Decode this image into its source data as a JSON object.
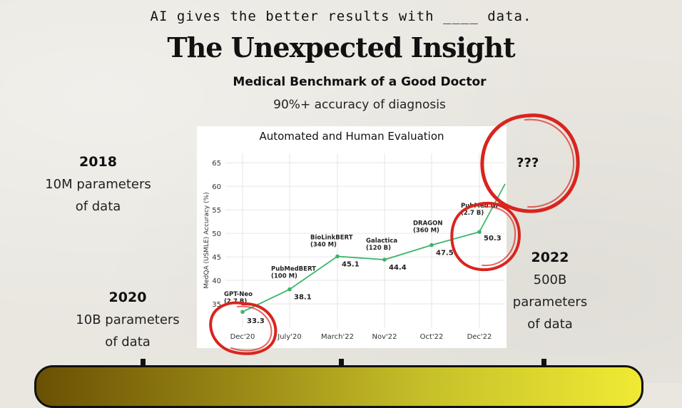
{
  "tagline": "AI gives the better results with ____ data.",
  "headline": "The Unexpected Insight",
  "benchmark": {
    "title": "Medical Benchmark of a Good Doctor",
    "detail": "90%+ accuracy of diagnosis"
  },
  "notes": {
    "y2018": {
      "year": "2018",
      "line1": "10M parameters",
      "line2": "of data"
    },
    "y2020": {
      "year": "2020",
      "line1": "10B parameters",
      "line2": "of data"
    },
    "y2022": {
      "year": "2022",
      "line1": "500B",
      "line2": "parameters",
      "line3": "of data"
    }
  },
  "unknown_label": "???",
  "colors": {
    "line": "#3cb56a",
    "circle": "#d9241e",
    "accent": "#f0ea34"
  },
  "chart_data": {
    "type": "line",
    "title": "Automated and Human Evaluation",
    "ylabel": "MedQA (USMLE) Accuracy (%)",
    "xlabel": "",
    "ylim": [
      30,
      67
    ],
    "yticks": [
      35,
      40,
      45,
      50,
      55,
      60,
      65
    ],
    "categories": [
      "Dec'20",
      "July'20",
      "March'22",
      "Nov'22",
      "Oct'22",
      "Dec'22"
    ],
    "points": [
      {
        "x": "Dec'20",
        "value": 33.3,
        "model": "GPT-Neo",
        "size": "(2.7 B)"
      },
      {
        "x": "July'20",
        "value": 38.1,
        "model": "PubMedBERT",
        "size": "(100 M)"
      },
      {
        "x": "March'22",
        "value": 45.1,
        "model": "BioLinkBERT",
        "size": "(340 M)"
      },
      {
        "x": "Nov'22",
        "value": 44.4,
        "model": "Galactica",
        "size": "(120 B)"
      },
      {
        "x": "Oct'22",
        "value": 47.5,
        "model": "DRAGON",
        "size": "(360 M)"
      },
      {
        "x": "Dec'22",
        "value": 50.3,
        "model": "PubMed GPT",
        "size": "(2.7 B)"
      }
    ],
    "trend_end": 60.5,
    "grid": true,
    "legend": "none"
  }
}
